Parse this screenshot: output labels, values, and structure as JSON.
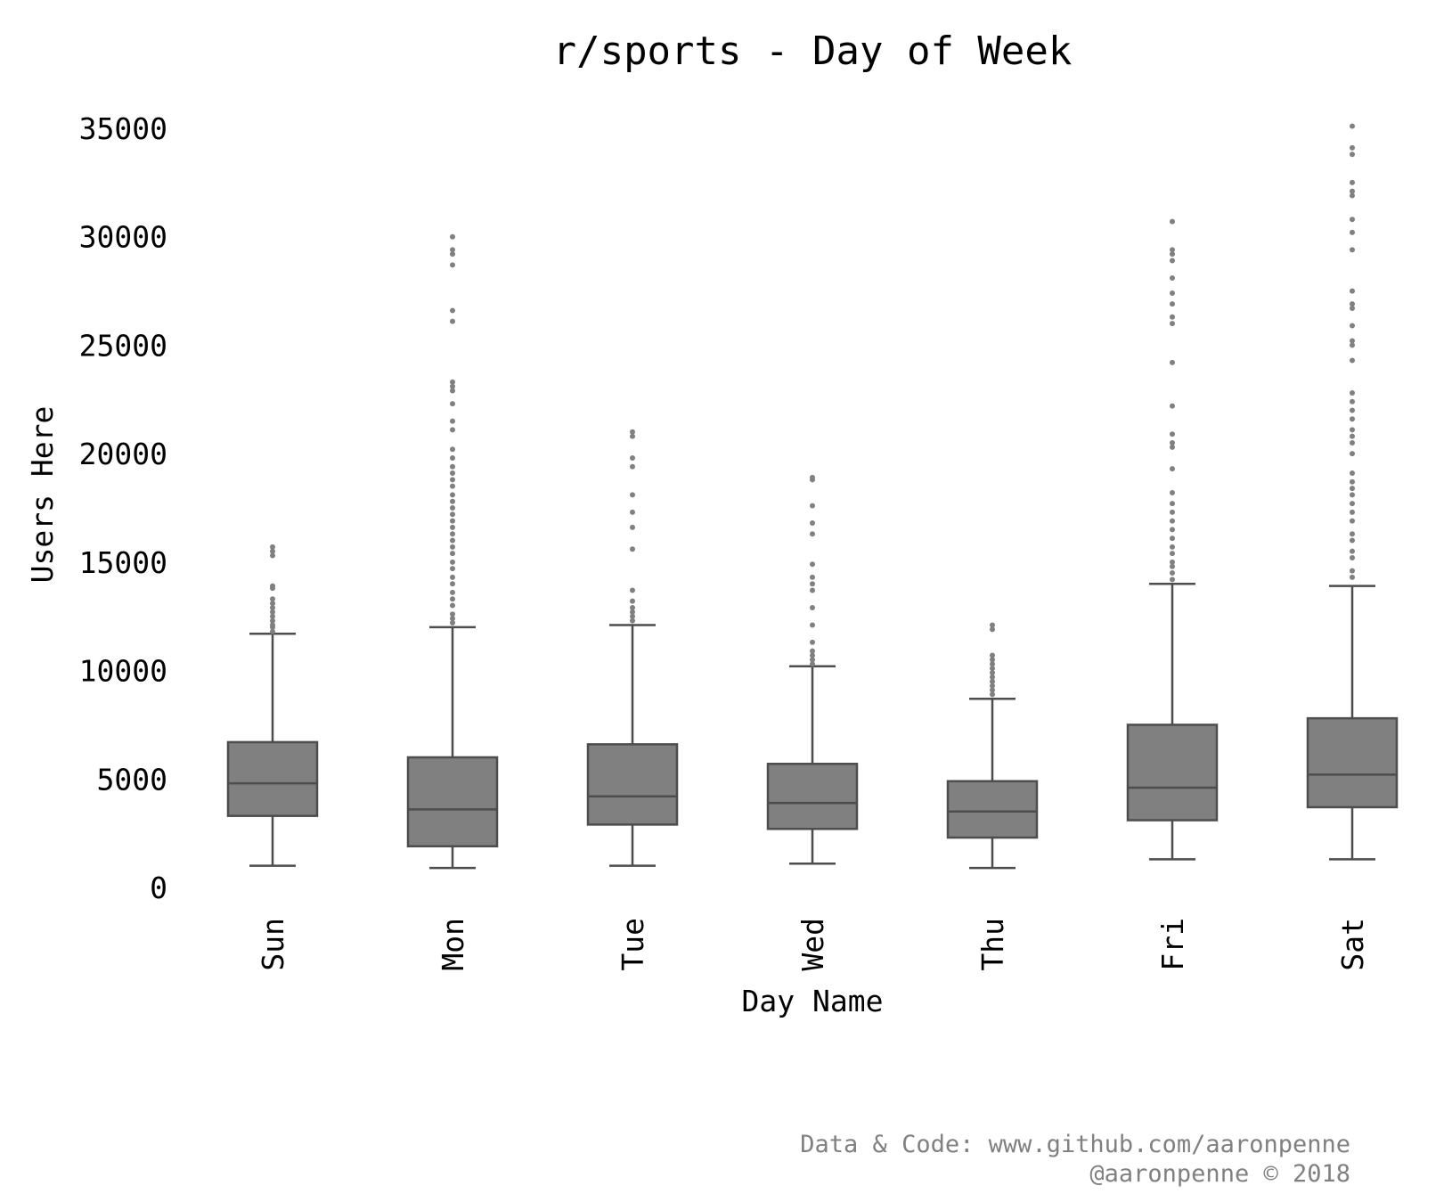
{
  "chart_data": {
    "type": "box",
    "title": "r/sports - Day of Week",
    "xlabel": "Day Name",
    "ylabel": "Users Here",
    "ylim": [
      0,
      35000
    ],
    "yticks": [
      0,
      5000,
      10000,
      15000,
      20000,
      25000,
      30000,
      35000
    ],
    "grid": false,
    "categories": [
      "Sun",
      "Mon",
      "Tue",
      "Wed",
      "Thu",
      "Fri",
      "Sat"
    ],
    "box_color": "#808080",
    "line_color": "#4d4d4d",
    "boxes": [
      {
        "name": "Sun",
        "whislo": 1000,
        "q1": 3300,
        "med": 4800,
        "q3": 6700,
        "whishi": 11700,
        "fliers": [
          11800,
          12000,
          12100,
          12300,
          12500,
          12700,
          12900,
          13100,
          13300,
          13800,
          13900,
          15300,
          15500,
          15700
        ]
      },
      {
        "name": "Mon",
        "whislo": 900,
        "q1": 1900,
        "med": 3600,
        "q3": 6000,
        "whishi": 12000,
        "fliers": [
          12200,
          12400,
          12600,
          13000,
          13300,
          13600,
          14000,
          14300,
          14700,
          15000,
          15400,
          15700,
          16000,
          16300,
          16600,
          16900,
          17200,
          17500,
          17800,
          18100,
          18500,
          18800,
          19100,
          19400,
          19800,
          20200,
          21100,
          21500,
          22300,
          22900,
          23100,
          23300,
          26100,
          26600,
          28700,
          29200,
          29400,
          30000
        ]
      },
      {
        "name": "Tue",
        "whislo": 1000,
        "q1": 2900,
        "med": 4200,
        "q3": 6600,
        "whishi": 12100,
        "fliers": [
          12300,
          12500,
          12700,
          12900,
          13200,
          13700,
          15600,
          16600,
          17300,
          18100,
          19400,
          19800,
          20800,
          21000
        ]
      },
      {
        "name": "Wed",
        "whislo": 1100,
        "q1": 2700,
        "med": 3900,
        "q3": 5700,
        "whishi": 10200,
        "fliers": [
          10300,
          10500,
          10700,
          10900,
          11300,
          12100,
          12900,
          13700,
          14000,
          14300,
          14900,
          16300,
          16800,
          17600,
          18800,
          18900
        ]
      },
      {
        "name": "Thu",
        "whislo": 900,
        "q1": 2300,
        "med": 3500,
        "q3": 4900,
        "whishi": 8700,
        "fliers": [
          8900,
          9100,
          9300,
          9500,
          9700,
          9900,
          10100,
          10300,
          10500,
          10700,
          11900,
          12100
        ]
      },
      {
        "name": "Fri",
        "whislo": 1300,
        "q1": 3100,
        "med": 4600,
        "q3": 7500,
        "whishi": 14000,
        "fliers": [
          14200,
          14500,
          14800,
          15000,
          15400,
          15700,
          16100,
          16500,
          16900,
          17300,
          17700,
          18200,
          19300,
          20300,
          20500,
          20900,
          22200,
          24200,
          26000,
          26300,
          26900,
          27400,
          28100,
          28900,
          29200,
          29400,
          30700
        ]
      },
      {
        "name": "Sat",
        "whislo": 1300,
        "q1": 3700,
        "med": 5200,
        "q3": 7800,
        "whishi": 13900,
        "fliers": [
          14300,
          14600,
          15200,
          15500,
          16000,
          16300,
          16900,
          17300,
          17700,
          18100,
          18400,
          18700,
          19100,
          20000,
          20500,
          20800,
          21100,
          21600,
          22000,
          22400,
          22800,
          24300,
          25000,
          25200,
          25900,
          26700,
          26900,
          27500,
          29400,
          30200,
          30800,
          31900,
          32100,
          32500,
          33800,
          34100,
          35100
        ]
      }
    ]
  },
  "footer": {
    "line1": "Data & Code: www.github.com/aaronpenne",
    "line2": "@aaronpenne © 2018"
  }
}
